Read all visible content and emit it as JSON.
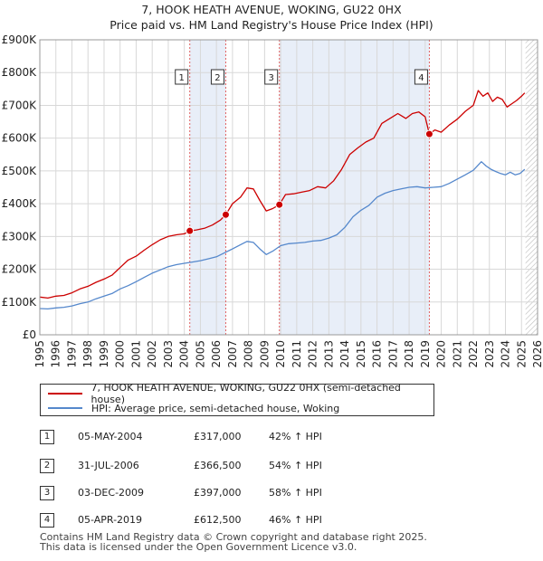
{
  "chart_data": {
    "type": "line",
    "title": "7, HOOK HEATH AVENUE, WOKING, GU22 0HX",
    "subtitle": "Price paid vs. HM Land Registry's House Price Index (HPI)",
    "xlabel": "",
    "ylabel": "",
    "xlim": [
      1995,
      2026
    ],
    "ylim": [
      0,
      900000
    ],
    "x_ticks": [
      1995,
      1996,
      1997,
      1998,
      1999,
      2000,
      2001,
      2002,
      2003,
      2004,
      2005,
      2006,
      2007,
      2008,
      2009,
      2010,
      2011,
      2012,
      2013,
      2014,
      2015,
      2016,
      2017,
      2018,
      2019,
      2020,
      2021,
      2022,
      2023,
      2024,
      2025,
      2026
    ],
    "x_tick_labels": [
      "1995",
      "1996",
      "1997",
      "1998",
      "1999",
      "2000",
      "2001",
      "2002",
      "2003",
      "2004",
      "2005",
      "2006",
      "2007",
      "2008",
      "2009",
      "2010",
      "2011",
      "2012",
      "2013",
      "2014",
      "2015",
      "2016",
      "2017",
      "2018",
      "2019",
      "2020",
      "2021",
      "2022",
      "2023",
      "2024",
      "2025",
      "2026"
    ],
    "y_ticks": [
      0,
      100000,
      200000,
      300000,
      400000,
      500000,
      600000,
      700000,
      800000,
      900000
    ],
    "y_tick_labels": [
      "£0",
      "£100K",
      "£200K",
      "£300K",
      "£400K",
      "£500K",
      "£600K",
      "£700K",
      "£800K",
      "£900K"
    ],
    "grid": true,
    "projection_start": 2025.25,
    "series": [
      {
        "name": "7, HOOK HEATH AVENUE, WOKING, GU22 0HX (semi-detached house)",
        "color": "#cc0000",
        "x": [
          1995.0,
          1995.5,
          1996.0,
          1996.5,
          1997.0,
          1997.5,
          1998.0,
          1998.5,
          1999.0,
          1999.5,
          2000.0,
          2000.5,
          2001.0,
          2001.5,
          2002.0,
          2002.5,
          2003.0,
          2003.5,
          2004.0,
          2004.34,
          2004.75,
          2005.25,
          2005.75,
          2006.25,
          2006.58,
          2007.0,
          2007.5,
          2007.9,
          2008.3,
          2008.7,
          2009.1,
          2009.5,
          2009.92,
          2010.3,
          2010.8,
          2011.3,
          2011.8,
          2012.3,
          2012.8,
          2013.3,
          2013.8,
          2014.3,
          2014.8,
          2015.3,
          2015.8,
          2016.3,
          2016.8,
          2017.3,
          2017.8,
          2018.2,
          2018.6,
          2019.0,
          2019.26,
          2019.6,
          2020.0,
          2020.5,
          2021.0,
          2021.5,
          2022.0,
          2022.3,
          2022.6,
          2022.9,
          2023.2,
          2023.5,
          2023.8,
          2024.1,
          2024.4,
          2024.7,
          2025.0,
          2025.2
        ],
        "y": [
          115000,
          112000,
          118000,
          120000,
          128000,
          140000,
          148000,
          160000,
          170000,
          182000,
          205000,
          228000,
          240000,
          258000,
          275000,
          290000,
          300000,
          305000,
          308000,
          317000,
          320000,
          325000,
          335000,
          350000,
          366500,
          400000,
          420000,
          448000,
          445000,
          410000,
          378000,
          385000,
          397000,
          428000,
          430000,
          435000,
          440000,
          452000,
          448000,
          470000,
          505000,
          550000,
          570000,
          588000,
          600000,
          645000,
          660000,
          675000,
          660000,
          675000,
          680000,
          665000,
          612500,
          625000,
          618000,
          640000,
          658000,
          682000,
          700000,
          745000,
          728000,
          738000,
          712000,
          725000,
          718000,
          695000,
          705000,
          715000,
          728000,
          738000
        ]
      },
      {
        "name": "HPI: Average price, semi-detached house, Woking",
        "color": "#5588cc",
        "x": [
          1995.0,
          1995.5,
          1996.0,
          1996.5,
          1997.0,
          1997.5,
          1998.0,
          1998.5,
          1999.0,
          1999.5,
          2000.0,
          2000.5,
          2001.0,
          2001.5,
          2002.0,
          2002.5,
          2003.0,
          2003.5,
          2004.0,
          2004.5,
          2005.0,
          2005.5,
          2006.0,
          2006.5,
          2007.0,
          2007.5,
          2007.9,
          2008.3,
          2008.7,
          2009.1,
          2009.5,
          2010.0,
          2010.5,
          2011.0,
          2011.5,
          2012.0,
          2012.5,
          2013.0,
          2013.5,
          2014.0,
          2014.5,
          2015.0,
          2015.5,
          2016.0,
          2016.5,
          2017.0,
          2017.5,
          2018.0,
          2018.5,
          2019.0,
          2019.5,
          2020.0,
          2020.5,
          2021.0,
          2021.5,
          2022.0,
          2022.5,
          2022.8,
          2023.1,
          2023.4,
          2023.7,
          2024.0,
          2024.3,
          2024.6,
          2024.9,
          2025.2
        ],
        "y": [
          80000,
          79000,
          82000,
          84000,
          88000,
          95000,
          100000,
          110000,
          118000,
          126000,
          140000,
          150000,
          162000,
          175000,
          188000,
          198000,
          208000,
          214000,
          218000,
          222000,
          226000,
          232000,
          238000,
          250000,
          262000,
          275000,
          285000,
          282000,
          262000,
          245000,
          255000,
          272000,
          278000,
          280000,
          282000,
          286000,
          288000,
          295000,
          305000,
          328000,
          360000,
          380000,
          395000,
          420000,
          432000,
          440000,
          445000,
          450000,
          452000,
          448000,
          450000,
          452000,
          462000,
          475000,
          488000,
          502000,
          528000,
          515000,
          505000,
          498000,
          492000,
          488000,
          496000,
          488000,
          492000,
          505000
        ]
      }
    ],
    "sales": [
      {
        "label": "1",
        "x": 2004.34,
        "y": 317000
      },
      {
        "label": "2",
        "x": 2006.58,
        "y": 366500
      },
      {
        "label": "3",
        "x": 2009.92,
        "y": 397000
      },
      {
        "label": "4",
        "x": 2019.26,
        "y": 612500
      }
    ],
    "shaded_spans": [
      [
        2004.34,
        2006.58
      ],
      [
        2009.92,
        2019.26
      ]
    ]
  },
  "legend": {
    "property_label": "7, HOOK HEATH AVENUE, WOKING, GU22 0HX (semi-detached house)",
    "hpi_label": "HPI: Average price, semi-detached house, Woking",
    "property_color": "#cc0000",
    "hpi_color": "#5588cc"
  },
  "sales_table": [
    {
      "num": "1",
      "date": "05-MAY-2004",
      "price": "£317,000",
      "hpi": "42% ↑ HPI"
    },
    {
      "num": "2",
      "date": "31-JUL-2006",
      "price": "£366,500",
      "hpi": "54% ↑ HPI"
    },
    {
      "num": "3",
      "date": "03-DEC-2009",
      "price": "£397,000",
      "hpi": "58% ↑ HPI"
    },
    {
      "num": "4",
      "date": "05-APR-2019",
      "price": "£612,500",
      "hpi": "46% ↑ HPI"
    }
  ],
  "footer": {
    "line1": "Contains HM Land Registry data © Crown copyright and database right 2025.",
    "line2": "This data is licensed under the Open Government Licence v3.0."
  }
}
